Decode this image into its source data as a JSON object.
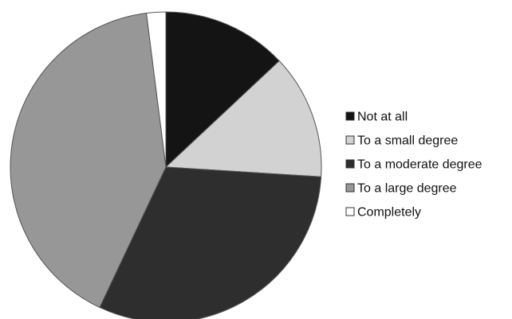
{
  "chart_data": {
    "type": "pie",
    "title": "",
    "categories": [
      "Not at all",
      "To a small degree",
      "To a moderate degree",
      "To a large degree",
      "Completely"
    ],
    "values": [
      13,
      13,
      31,
      41,
      2
    ],
    "unit": "percent",
    "start_angle": "12 o'clock",
    "direction": "clockwise",
    "legend_position": "right",
    "colors": [
      "#141414",
      "#d2d2d2",
      "#2e2e2e",
      "#979797",
      "#ffffff"
    ],
    "slice_border_color": "#555555"
  }
}
